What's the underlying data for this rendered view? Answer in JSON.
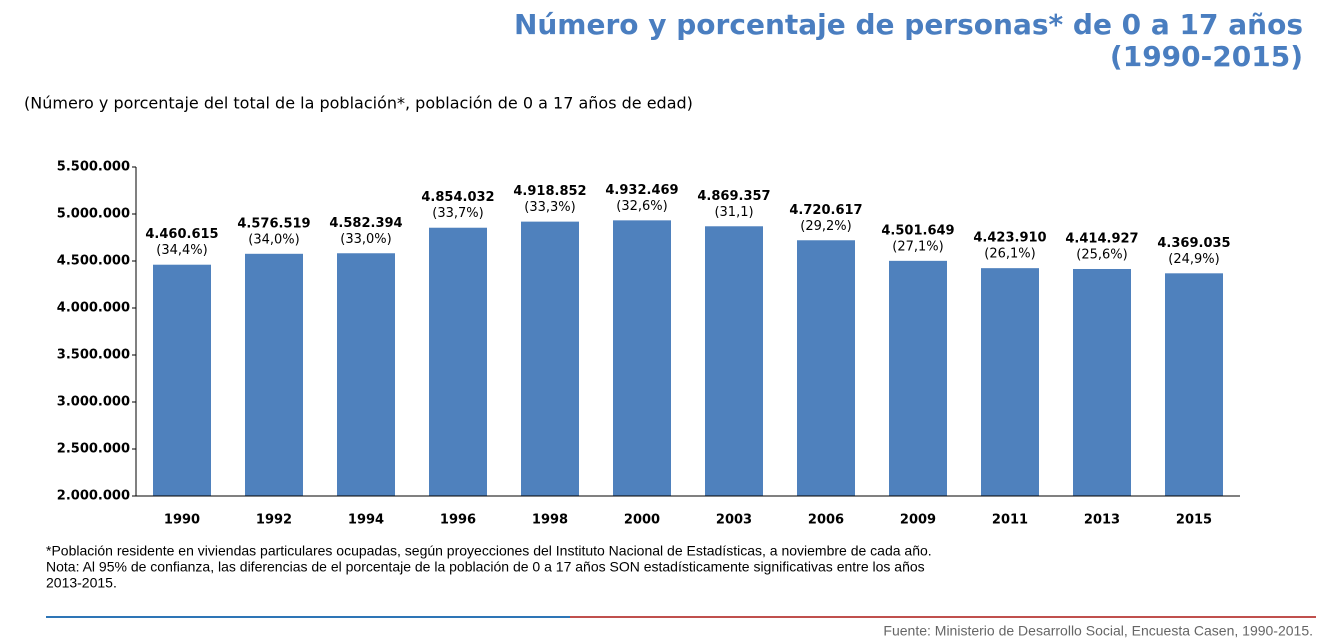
{
  "chart_data": {
    "type": "bar",
    "title": [
      "Número y porcentaje de personas* de 0 a 17 años",
      "(1990-2015)"
    ],
    "subtitle": "(Número y porcentaje del total de la población*, población de 0 a 17 años de edad)",
    "categories": [
      "1990",
      "1992",
      "1994",
      "1996",
      "1998",
      "2000",
      "2003",
      "2006",
      "2009",
      "2011",
      "2013",
      "2015"
    ],
    "values": [
      4460615,
      4576519,
      4582394,
      4854032,
      4918852,
      4932469,
      4869357,
      4720617,
      4501649,
      4423910,
      4414927,
      4369035
    ],
    "value_labels": [
      "4.460.615",
      "4.576.519",
      "4.582.394",
      "4.854.032",
      "4.918.852",
      "4.932.469",
      "4.869.357",
      "4.720.617",
      "4.501.649",
      "4.423.910",
      "4.414.927",
      "4.369.035"
    ],
    "percent_labels": [
      "(34,4%)",
      "(34,0%)",
      "(33,0%)",
      "(33,7%)",
      "(33,3%)",
      "(32,6%)",
      "(31,1)",
      "(29,2%)",
      "(27,1%)",
      "(26,1%)",
      "(25,6%)",
      "(24,9%)"
    ],
    "color": "#4f81bd",
    "ylim": [
      2000000,
      5500000
    ],
    "yticks": [
      {
        "value": 2000000,
        "label": "2.000.000"
      },
      {
        "value": 2500000,
        "label": "2.500.000"
      },
      {
        "value": 3000000,
        "label": "3.000.000"
      },
      {
        "value": 3500000,
        "label": "3.500.000"
      },
      {
        "value": 4000000,
        "label": "4.000.000"
      },
      {
        "value": 4500000,
        "label": "4.500.000"
      },
      {
        "value": 5000000,
        "label": "5.000.000"
      },
      {
        "value": 5500000,
        "label": "5.500.000"
      }
    ],
    "notes": [
      "*Población residente en viviendas particulares ocupadas, según proyecciones del Instituto Nacional de Estadísticas, a noviembre de cada  año.",
      "Nota: Al 95% de confianza, las diferencias de el porcentaje de la población de 0 a 17 años SON estadísticamente significativas entre los años",
      "2013-2015."
    ],
    "source": "Fuente: Ministerio de Desarrollo Social, Encuesta Casen, 1990-2015."
  }
}
